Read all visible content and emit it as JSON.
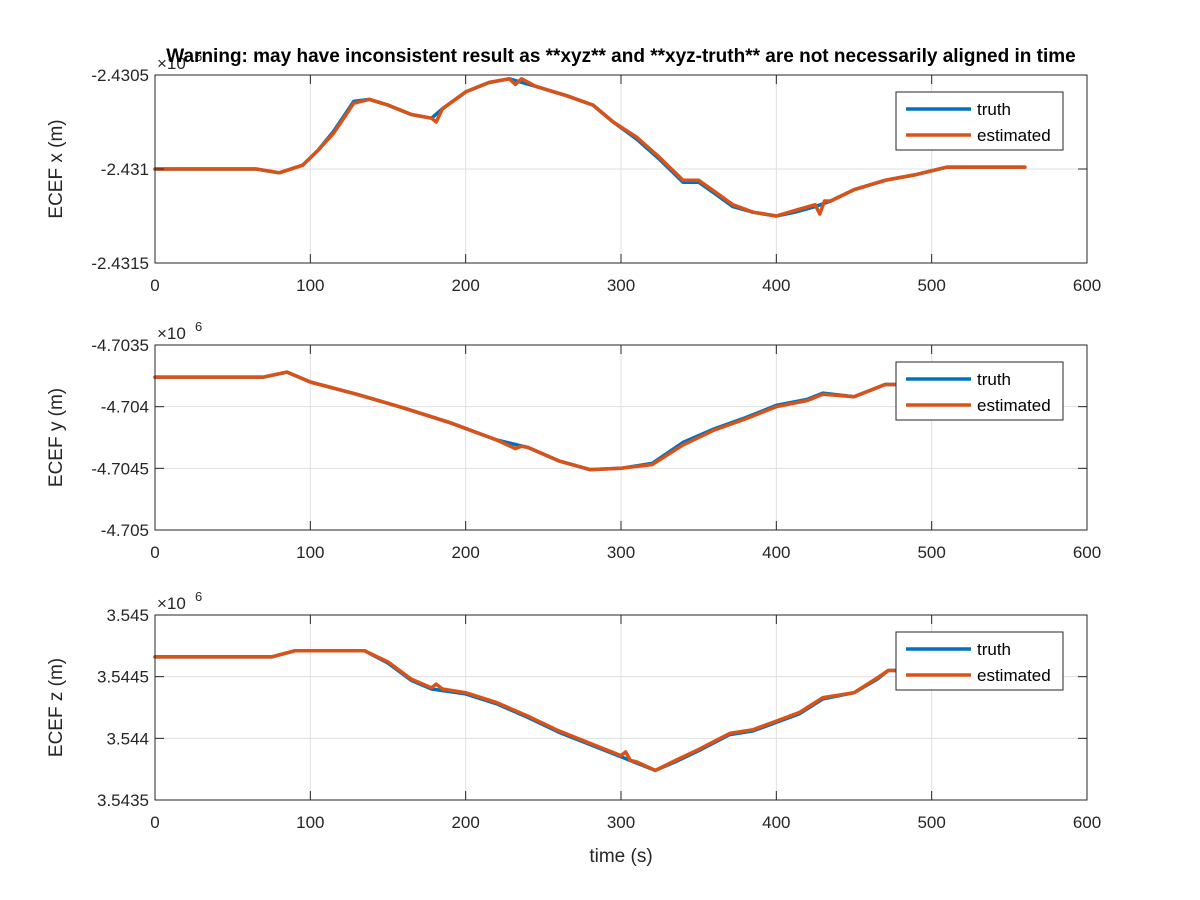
{
  "figure": {
    "title": "Warning: may have inconsistent result as **xyz** and **xyz-truth** are not necessarily aligned in time",
    "xlabel": "time (s)"
  },
  "chart_data": [
    {
      "type": "line",
      "ylabel": "ECEF x (m)",
      "exponent_label": "×10",
      "exponent_power": "6",
      "xlim": [
        0,
        600
      ],
      "ylim": [
        -2.4315,
        -2.4305
      ],
      "xticks": [
        0,
        100,
        200,
        300,
        400,
        500,
        600
      ],
      "xtick_labels": [
        "0",
        "100",
        "200",
        "300",
        "400",
        "500",
        "600"
      ],
      "yticks": [
        -2.4315,
        -2.431,
        -2.4305
      ],
      "ytick_labels": [
        "-2.4315",
        "-2.431",
        "-2.4305"
      ],
      "grid": true,
      "legend_position": "top-right",
      "series": [
        {
          "name": "truth",
          "color": "#0072BD",
          "x": [
            0,
            65,
            80,
            95,
            105,
            115,
            128,
            138,
            150,
            165,
            178,
            185,
            200,
            215,
            228,
            245,
            265,
            282,
            295,
            310,
            325,
            340,
            350,
            362,
            372,
            385,
            400,
            412,
            425,
            435,
            450,
            470,
            490,
            510,
            560
          ],
          "y": [
            -2.431,
            -2.431,
            -2.43102,
            -2.43098,
            -2.4309,
            -2.4308,
            -2.43064,
            -2.43063,
            -2.43066,
            -2.43071,
            -2.43073,
            -2.43068,
            -2.43059,
            -2.43054,
            -2.43052,
            -2.43056,
            -2.43061,
            -2.43066,
            -2.43075,
            -2.43084,
            -2.43095,
            -2.43107,
            -2.43107,
            -2.43114,
            -2.4312,
            -2.43123,
            -2.43125,
            -2.43123,
            -2.4312,
            -2.43117,
            -2.43111,
            -2.43106,
            -2.43103,
            -2.43099,
            -2.43099
          ]
        },
        {
          "name": "estimated",
          "color": "#D95319",
          "x": [
            0,
            65,
            80,
            95,
            105,
            115,
            128,
            138,
            150,
            165,
            178,
            181,
            185,
            200,
            215,
            228,
            232,
            236,
            245,
            265,
            282,
            295,
            310,
            325,
            340,
            350,
            362,
            372,
            385,
            400,
            412,
            425,
            428,
            431,
            435,
            450,
            470,
            490,
            510,
            560
          ],
          "y": [
            -2.431,
            -2.431,
            -2.43102,
            -2.43098,
            -2.4309,
            -2.43081,
            -2.43065,
            -2.43063,
            -2.43066,
            -2.43071,
            -2.43073,
            -2.43075,
            -2.43068,
            -2.43059,
            -2.43054,
            -2.43052,
            -2.43055,
            -2.43052,
            -2.43056,
            -2.43061,
            -2.43066,
            -2.43075,
            -2.43083,
            -2.43094,
            -2.43106,
            -2.43106,
            -2.43113,
            -2.43119,
            -2.43123,
            -2.43125,
            -2.43122,
            -2.43119,
            -2.43124,
            -2.43117,
            -2.43117,
            -2.43111,
            -2.43106,
            -2.43103,
            -2.43099,
            -2.43099
          ]
        }
      ]
    },
    {
      "type": "line",
      "ylabel": "ECEF y (m)",
      "exponent_label": "×10",
      "exponent_power": "6",
      "xlim": [
        0,
        600
      ],
      "ylim": [
        -4.705,
        -4.7035
      ],
      "xticks": [
        0,
        100,
        200,
        300,
        400,
        500,
        600
      ],
      "xtick_labels": [
        "0",
        "100",
        "200",
        "300",
        "400",
        "500",
        "600"
      ],
      "yticks": [
        -4.705,
        -4.7045,
        -4.704,
        -4.7035
      ],
      "ytick_labels": [
        "-4.705",
        "-4.7045",
        "-4.704",
        "-4.7035"
      ],
      "grid": true,
      "legend_position": "top-right",
      "series": [
        {
          "name": "truth",
          "color": "#0072BD",
          "x": [
            0,
            70,
            85,
            100,
            130,
            160,
            190,
            220,
            240,
            260,
            280,
            300,
            320,
            340,
            360,
            380,
            400,
            420,
            430,
            450,
            470,
            480
          ],
          "y": [
            -4.70376,
            -4.70376,
            -4.70372,
            -4.7038,
            -4.7039,
            -4.70401,
            -4.70413,
            -4.70427,
            -4.70433,
            -4.70444,
            -4.70451,
            -4.7045,
            -4.70446,
            -4.70429,
            -4.70418,
            -4.70409,
            -4.70399,
            -4.70394,
            -4.70389,
            -4.70392,
            -4.70382,
            -4.70382
          ]
        },
        {
          "name": "estimated",
          "color": "#D95319",
          "x": [
            0,
            70,
            85,
            100,
            130,
            160,
            190,
            220,
            232,
            236,
            240,
            260,
            280,
            300,
            320,
            340,
            360,
            380,
            400,
            420,
            430,
            450,
            470,
            480
          ],
          "y": [
            -4.70376,
            -4.70376,
            -4.70372,
            -4.7038,
            -4.7039,
            -4.70401,
            -4.70413,
            -4.70427,
            -4.70434,
            -4.70432,
            -4.70433,
            -4.70444,
            -4.70451,
            -4.7045,
            -4.70447,
            -4.70431,
            -4.70419,
            -4.7041,
            -4.704,
            -4.70395,
            -4.7039,
            -4.70392,
            -4.70382,
            -4.70382
          ]
        }
      ]
    },
    {
      "type": "line",
      "ylabel": "ECEF z (m)",
      "exponent_label": "×10",
      "exponent_power": "6",
      "xlim": [
        0,
        600
      ],
      "ylim": [
        3.5435,
        3.545
      ],
      "xticks": [
        0,
        100,
        200,
        300,
        400,
        500,
        600
      ],
      "xtick_labels": [
        "0",
        "100",
        "200",
        "300",
        "400",
        "500",
        "600"
      ],
      "yticks": [
        3.5435,
        3.544,
        3.5445,
        3.545
      ],
      "ytick_labels": [
        "3.5435",
        "3.544",
        "3.5445",
        "3.545"
      ],
      "grid": true,
      "legend_position": "top-right",
      "series": [
        {
          "name": "truth",
          "color": "#0072BD",
          "x": [
            0,
            75,
            90,
            110,
            135,
            150,
            165,
            178,
            200,
            220,
            240,
            260,
            280,
            300,
            310,
            322,
            335,
            350,
            370,
            385,
            400,
            415,
            430,
            450,
            465,
            472,
            480
          ],
          "y": [
            3.54466,
            3.54466,
            3.54471,
            3.54471,
            3.54471,
            3.54461,
            3.54447,
            3.5444,
            3.54436,
            3.54428,
            3.54417,
            3.54405,
            3.54395,
            3.54385,
            3.5438,
            3.54374,
            3.54381,
            3.5439,
            3.54403,
            3.54406,
            3.54413,
            3.5442,
            3.54432,
            3.54437,
            3.54448,
            3.54455,
            3.54455
          ]
        },
        {
          "name": "estimated",
          "color": "#D95319",
          "x": [
            0,
            75,
            90,
            110,
            135,
            150,
            165,
            178,
            181,
            185,
            200,
            220,
            240,
            260,
            280,
            300,
            303,
            306,
            310,
            322,
            335,
            350,
            370,
            385,
            400,
            415,
            430,
            450,
            465,
            472,
            480
          ],
          "y": [
            3.54466,
            3.54466,
            3.54471,
            3.54471,
            3.54471,
            3.54462,
            3.54448,
            3.54441,
            3.54444,
            3.5444,
            3.54437,
            3.54429,
            3.54418,
            3.54406,
            3.54396,
            3.54386,
            3.54389,
            3.54382,
            3.54381,
            3.54374,
            3.54382,
            3.54391,
            3.54404,
            3.54407,
            3.54414,
            3.54421,
            3.54433,
            3.54437,
            3.54449,
            3.54455,
            3.54455
          ]
        }
      ]
    }
  ]
}
